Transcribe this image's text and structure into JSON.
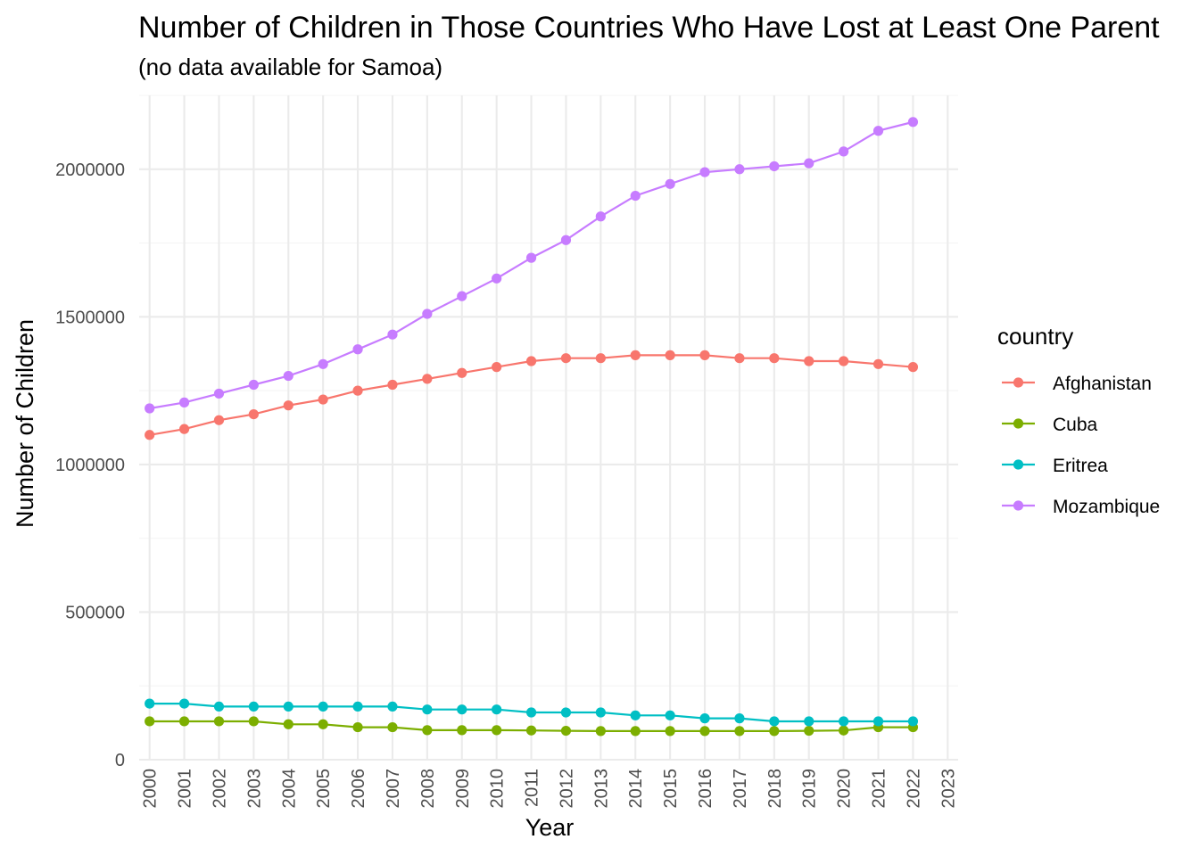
{
  "chart_data": {
    "type": "line",
    "title": "Number of Children in Those Countries Who Have Lost at Least One Parent",
    "subtitle": "(no data available for Samoa)",
    "xlabel": "Year",
    "ylabel": "Number of Children",
    "xlim": [
      1999.7,
      2023.3
    ],
    "ylim": [
      0,
      2250000
    ],
    "x_ticks": [
      "2000",
      "2001",
      "2002",
      "2003",
      "2004",
      "2005",
      "2006",
      "2007",
      "2008",
      "2009",
      "2010",
      "2011",
      "2012",
      "2013",
      "2014",
      "2015",
      "2016",
      "2017",
      "2018",
      "2019",
      "2020",
      "2021",
      "2022",
      "2023"
    ],
    "y_ticks": [
      "0",
      "500000",
      "1000000",
      "1500000",
      "2000000"
    ],
    "grid": true,
    "legend": {
      "title": "country",
      "position": "right"
    },
    "x": [
      2000,
      2001,
      2002,
      2003,
      2004,
      2005,
      2006,
      2007,
      2008,
      2009,
      2010,
      2011,
      2012,
      2013,
      2014,
      2015,
      2016,
      2017,
      2018,
      2019,
      2020,
      2021,
      2022
    ],
    "series": [
      {
        "name": "Afghanistan",
        "color": "#F8766D",
        "values": [
          1100000,
          1120000,
          1150000,
          1170000,
          1200000,
          1220000,
          1250000,
          1270000,
          1290000,
          1310000,
          1330000,
          1350000,
          1360000,
          1360000,
          1370000,
          1370000,
          1370000,
          1360000,
          1360000,
          1350000,
          1350000,
          1340000,
          1330000
        ]
      },
      {
        "name": "Cuba",
        "color": "#7CAE00",
        "values": [
          130000,
          130000,
          130000,
          130000,
          120000,
          120000,
          110000,
          110000,
          100000,
          100000,
          100000,
          99000,
          98000,
          97000,
          97000,
          97000,
          97000,
          97000,
          97000,
          98000,
          99000,
          110000,
          110000
        ]
      },
      {
        "name": "Eritrea",
        "color": "#00BFC4",
        "values": [
          190000,
          190000,
          180000,
          180000,
          180000,
          180000,
          180000,
          180000,
          170000,
          170000,
          170000,
          160000,
          160000,
          160000,
          150000,
          150000,
          140000,
          140000,
          130000,
          130000,
          130000,
          130000,
          130000
        ]
      },
      {
        "name": "Mozambique",
        "color": "#C77CFF",
        "values": [
          1190000,
          1210000,
          1240000,
          1270000,
          1300000,
          1340000,
          1390000,
          1440000,
          1510000,
          1570000,
          1630000,
          1700000,
          1760000,
          1840000,
          1910000,
          1950000,
          1990000,
          2000000,
          2010000,
          2020000,
          2060000,
          2130000,
          2160000
        ]
      }
    ]
  }
}
